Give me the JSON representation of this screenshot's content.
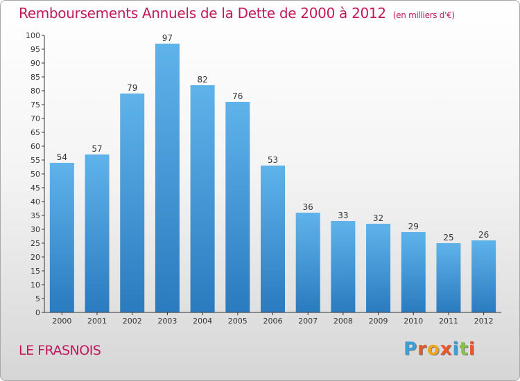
{
  "header": {
    "title": "Remboursements Annuels de la Dette de 2000 à 2012",
    "subtitle": "(en milliers d'€)"
  },
  "footer": {
    "location": "LE FRASNOIS",
    "logo": {
      "letters": [
        "P",
        "r",
        "o",
        "x",
        "i",
        "t",
        "i"
      ],
      "colors": [
        "#3aa0d8",
        "#e8582c",
        "#f2a51f",
        "#e8582c",
        "#3aa0d8",
        "#8bc34a",
        "#e8582c"
      ]
    }
  },
  "colors": {
    "title": "#c2185b",
    "bar_light": "#5aafe8",
    "bar_dark": "#2a7cc0",
    "axis": "#333333"
  },
  "chart_data": {
    "type": "bar",
    "categories": [
      "2000",
      "2001",
      "2002",
      "2003",
      "2004",
      "2005",
      "2006",
      "2007",
      "2008",
      "2009",
      "2010",
      "2011",
      "2012"
    ],
    "values": [
      54,
      57,
      79,
      97,
      82,
      76,
      53,
      36,
      33,
      32,
      29,
      25,
      26
    ],
    "data_labels": [
      "54",
      "57",
      "79",
      "97",
      "82",
      "76",
      "53",
      "36",
      "33",
      "32",
      "29",
      "25",
      "26"
    ],
    "yticks": [
      "0",
      "5",
      "10",
      "15",
      "20",
      "25",
      "30",
      "35",
      "40",
      "45",
      "50",
      "55",
      "60",
      "65",
      "70",
      "75",
      "80",
      "85",
      "90",
      "95",
      "100"
    ],
    "ylim": [
      0,
      100
    ],
    "grid": false,
    "legend": "none"
  }
}
